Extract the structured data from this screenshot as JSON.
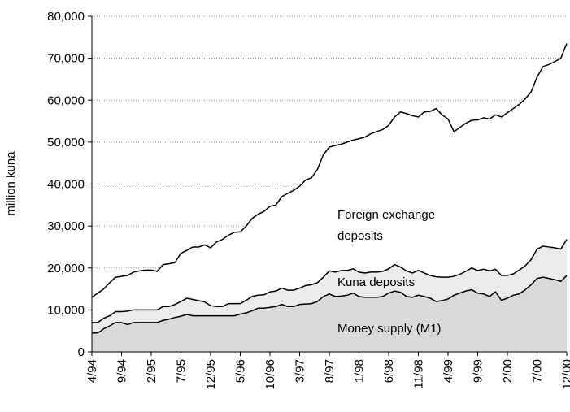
{
  "chart_data": {
    "type": "stacked_area",
    "y_label": "million kuna",
    "categories": [
      "4/94",
      null,
      null,
      null,
      null,
      "9/94",
      null,
      null,
      null,
      null,
      "2/95",
      null,
      null,
      null,
      null,
      "7/95",
      null,
      null,
      null,
      null,
      "12/95",
      null,
      null,
      null,
      null,
      "5/96",
      null,
      null,
      null,
      null,
      "10/96",
      null,
      null,
      null,
      null,
      "3/97",
      null,
      null,
      null,
      null,
      "8/97",
      null,
      null,
      null,
      null,
      "1/98",
      null,
      null,
      null,
      null,
      "6/98",
      null,
      null,
      null,
      null,
      "11/98",
      null,
      null,
      null,
      null,
      "4/99",
      null,
      null,
      null,
      null,
      "9/99",
      null,
      null,
      null,
      null,
      "2/00",
      null,
      null,
      null,
      null,
      "7/00",
      null,
      null,
      null,
      null,
      "12/00"
    ],
    "series": [
      {
        "name": "Money supply (M1)",
        "color": "#d9d9d9",
        "values": [
          4500,
          4500,
          5500,
          6200,
          7000,
          7000,
          6500,
          7000,
          7000,
          7000,
          7000,
          7000,
          7500,
          7800,
          8200,
          8500,
          8900,
          8600,
          8600,
          8600,
          8600,
          8600,
          8600,
          8600,
          8600,
          9000,
          9300,
          9800,
          10400,
          10400,
          10600,
          10800,
          11300,
          10800,
          10800,
          11300,
          11400,
          11500,
          12000,
          13200,
          13800,
          13200,
          13300,
          13500,
          14000,
          13200,
          13000,
          13000,
          13000,
          13200,
          14000,
          14500,
          14200,
          13200,
          13000,
          13500,
          13200,
          12800,
          12000,
          12200,
          12600,
          13500,
          14000,
          14500,
          14800,
          14000,
          13800,
          13200,
          14300,
          12300,
          12800,
          13500,
          13800,
          14800,
          16000,
          17500,
          17800,
          17500,
          17200,
          16800,
          18200
        ]
      },
      {
        "name": "Kuna deposits",
        "color": "#ebebeb",
        "values": [
          2500,
          2500,
          2500,
          2400,
          2600,
          2600,
          3200,
          3000,
          3000,
          3000,
          3000,
          3000,
          3300,
          3000,
          3100,
          3500,
          3900,
          3900,
          3600,
          3300,
          2400,
          2200,
          2200,
          2900,
          2900,
          2500,
          3000,
          3400,
          3100,
          3200,
          3700,
          3700,
          3900,
          3900,
          3900,
          3900,
          4400,
          4500,
          4500,
          4600,
          5500,
          5800,
          6100,
          5900,
          5800,
          5800,
          5800,
          6000,
          6000,
          6000,
          5800,
          6300,
          6000,
          6100,
          5800,
          5900,
          5600,
          5400,
          5900,
          5600,
          5200,
          4500,
          4500,
          4700,
          5200,
          5400,
          5900,
          6100,
          5400,
          5900,
          5400,
          5100,
          5700,
          5700,
          6000,
          7000,
          7400,
          7500,
          7600,
          7700,
          8600
        ]
      },
      {
        "name": "Foreign exchange deposits",
        "color": "#ffffff",
        "values": [
          6000,
          7000,
          7000,
          7900,
          8200,
          8400,
          8500,
          9000,
          9300,
          9500,
          9500,
          9200,
          10000,
          10200,
          10000,
          11500,
          11400,
          12500,
          12800,
          13600,
          13800,
          15400,
          16000,
          16300,
          17000,
          17100,
          17700,
          18600,
          19300,
          19900,
          20400,
          20500,
          21800,
          23100,
          23800,
          24300,
          25200,
          25500,
          27000,
          29200,
          29500,
          30200,
          30100,
          30600,
          30700,
          31800,
          32400,
          33000,
          33500,
          33800,
          34200,
          35200,
          37000,
          37500,
          37500,
          36600,
          38400,
          39100,
          40100,
          38700,
          37700,
          34500,
          35000,
          35300,
          35200,
          35900,
          36100,
          36200,
          36800,
          37800,
          38800,
          39400,
          39500,
          39800,
          40000,
          41000,
          42800,
          43500,
          44400,
          45500,
          46700
        ]
      }
    ],
    "ylim": [
      0,
      80000
    ],
    "yticks": [
      0,
      {
        "value": 10000,
        "label": "10,000"
      },
      {
        "value": 20000,
        "label": "20,000"
      },
      {
        "value": 30000,
        "label": "30,000"
      },
      {
        "value": 40000,
        "label": "40,000"
      },
      {
        "value": 50000,
        "label": "50,000"
      },
      {
        "value": 60000,
        "label": "60,000"
      },
      {
        "value": 70000,
        "label": "70,000"
      },
      {
        "value": 80000,
        "label": "80,000"
      }
    ],
    "grid": true
  }
}
